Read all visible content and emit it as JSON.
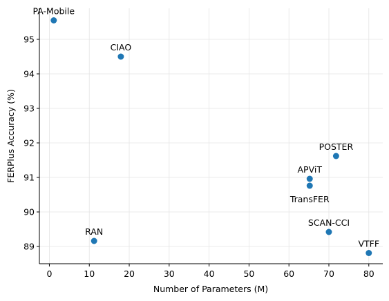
{
  "chart_data": {
    "type": "scatter",
    "title": "",
    "xlabel": "Number of Parameters (M)",
    "ylabel": "FERPlus Accuracy (%)",
    "xlim": [
      -2.5,
      83.5
    ],
    "ylim": [
      88.5,
      95.9
    ],
    "xticks": [
      0,
      10,
      20,
      30,
      40,
      50,
      60,
      70,
      80
    ],
    "yticks": [
      89,
      90,
      91,
      92,
      93,
      94,
      95
    ],
    "grid": true,
    "color": "#1f77b4",
    "points": [
      {
        "label": "PA-Mobile",
        "x": 1.1,
        "y": 95.55,
        "label_pos": "above"
      },
      {
        "label": "CIAO",
        "x": 17.9,
        "y": 94.5,
        "label_pos": "above"
      },
      {
        "label": "POSTER",
        "x": 71.8,
        "y": 91.62,
        "label_pos": "above"
      },
      {
        "label": "APViT",
        "x": 65.2,
        "y": 90.96,
        "label_pos": "above"
      },
      {
        "label": "TransFER",
        "x": 65.2,
        "y": 90.76,
        "label_pos": "below"
      },
      {
        "label": "SCAN-CCI",
        "x": 70.0,
        "y": 89.42,
        "label_pos": "above"
      },
      {
        "label": "RAN",
        "x": 11.2,
        "y": 89.16,
        "label_pos": "above"
      },
      {
        "label": "VTFF",
        "x": 80.0,
        "y": 88.81,
        "label_pos": "above"
      }
    ]
  }
}
